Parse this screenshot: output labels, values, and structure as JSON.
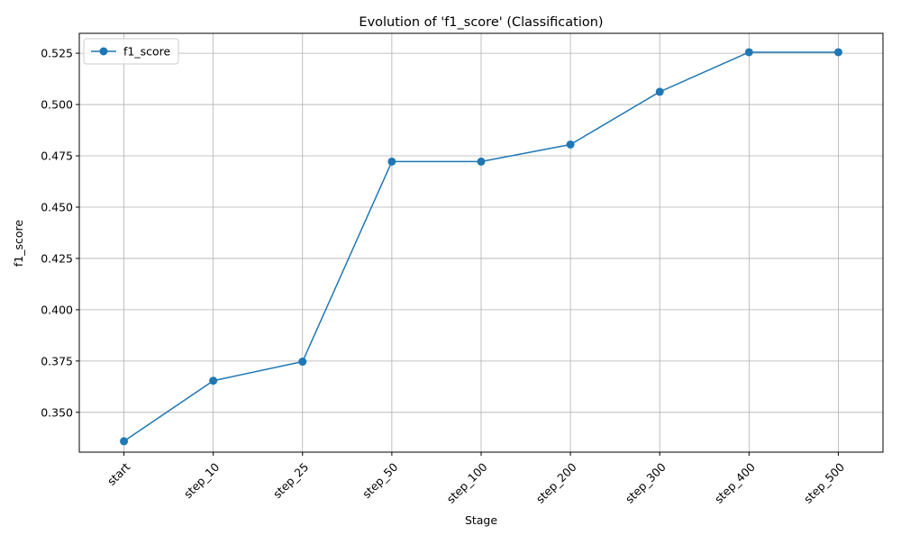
{
  "chart_data": {
    "type": "line",
    "title": "Evolution of 'f1_score' (Classification)",
    "xlabel": "Stage",
    "ylabel": "f1_score",
    "categories": [
      "start",
      "step_10",
      "step_25",
      "step_50",
      "step_100",
      "step_200",
      "step_300",
      "step_400",
      "step_500"
    ],
    "series": [
      {
        "name": "f1_score",
        "values": [
          0.3359,
          0.3654,
          0.3747,
          0.4722,
          0.4722,
          0.4805,
          0.5062,
          0.5255,
          0.5255
        ]
      }
    ],
    "yticks": [
      "0.350",
      "0.375",
      "0.400",
      "0.425",
      "0.450",
      "0.475",
      "0.500",
      "0.525"
    ],
    "ylim": [
      0.3306,
      0.5347
    ],
    "grid": true,
    "legend_position": "upper-left",
    "colors": {
      "line": "#1f77b4",
      "grid": "#b0b0b0",
      "axis": "#000000",
      "legend_border": "#cccccc"
    }
  }
}
